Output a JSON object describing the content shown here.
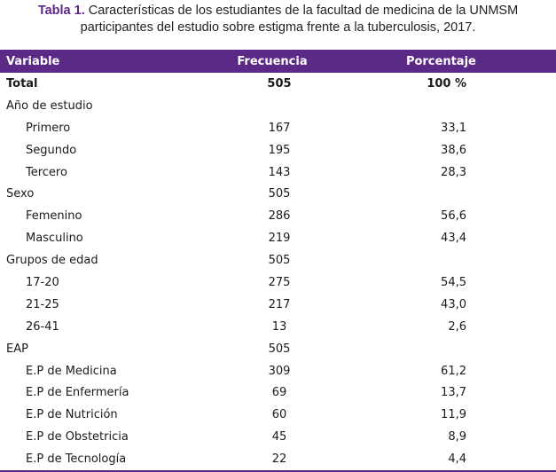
{
  "caption": {
    "label": "Tabla 1.",
    "text": " Características de los estudiantes de la facultad de medicina de la UNMSM participantes del estudio sobre estigma frente a la tuberculosis, 2017."
  },
  "table": {
    "headers": [
      "Variable",
      "Frecuencia",
      "Porcentaje"
    ],
    "rows": [
      {
        "variable": "Total",
        "frecuencia": "505",
        "porcentaje": "100 %",
        "bold": true,
        "indent": false
      },
      {
        "variable": "Año de estudio",
        "frecuencia": "",
        "porcentaje": "",
        "indent": false
      },
      {
        "variable": "Primero",
        "frecuencia": "167",
        "porcentaje": "33,1",
        "indent": true
      },
      {
        "variable": "Segundo",
        "frecuencia": "195",
        "porcentaje": "38,6",
        "indent": true
      },
      {
        "variable": "Tercero",
        "frecuencia": "143",
        "porcentaje": "28,3",
        "indent": true
      },
      {
        "variable": "Sexo",
        "frecuencia": "505",
        "porcentaje": "",
        "indent": false
      },
      {
        "variable": "Femenino",
        "frecuencia": "286",
        "porcentaje": "56,6",
        "indent": true
      },
      {
        "variable": "Masculino",
        "frecuencia": "219",
        "porcentaje": "43,4",
        "indent": true
      },
      {
        "variable": "Grupos de edad",
        "frecuencia": "505",
        "porcentaje": "",
        "indent": false
      },
      {
        "variable": "17-20",
        "frecuencia": "275",
        "porcentaje": "54,5",
        "indent": true
      },
      {
        "variable": "21-25",
        "frecuencia": "217",
        "porcentaje": "43,0",
        "indent": true
      },
      {
        "variable": "26-41",
        "frecuencia": "13",
        "porcentaje": "2,6",
        "indent": true
      },
      {
        "variable": "EAP",
        "frecuencia": "505",
        "porcentaje": "",
        "indent": false
      },
      {
        "variable": "E.P de Medicina",
        "frecuencia": "309",
        "porcentaje": "61,2",
        "indent": true
      },
      {
        "variable": "E.P de Enfermería",
        "frecuencia": "69",
        "porcentaje": "13,7",
        "indent": true
      },
      {
        "variable": "E.P de Nutrición",
        "frecuencia": "60",
        "porcentaje": "11,9",
        "indent": true
      },
      {
        "variable": "E.P de Obstetricia",
        "frecuencia": "45",
        "porcentaje": "8,9",
        "indent": true
      },
      {
        "variable": "E.P de Tecnología",
        "frecuencia": "22",
        "porcentaje": "4,4",
        "indent": true
      }
    ]
  },
  "colors": {
    "accent": "#5b2a86"
  }
}
